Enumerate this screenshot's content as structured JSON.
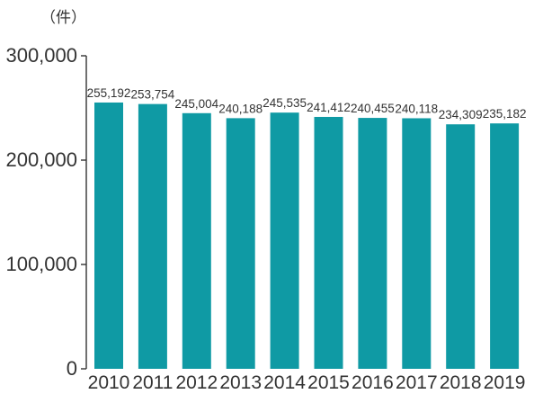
{
  "chart_data": {
    "type": "bar",
    "unit_label": "（件）",
    "categories": [
      "2010",
      "2011",
      "2012",
      "2013",
      "2014",
      "2015",
      "2016",
      "2017",
      "2018",
      "2019"
    ],
    "values": [
      255192,
      253754,
      245004,
      240188,
      245535,
      241412,
      240455,
      240118,
      234309,
      235182
    ],
    "value_labels": [
      "255,192",
      "253,754",
      "245,004",
      "240,188",
      "245,535",
      "241,412",
      "240,455",
      "240,118",
      "234,309",
      "235,182"
    ],
    "yticks": [
      0,
      100000,
      200000,
      300000
    ],
    "ytick_labels": [
      "0",
      "100,000",
      "200,000",
      "300,000"
    ],
    "ylim": [
      0,
      300000
    ],
    "bar_color": "#0f9aa4",
    "grid": false,
    "legend": "none"
  }
}
